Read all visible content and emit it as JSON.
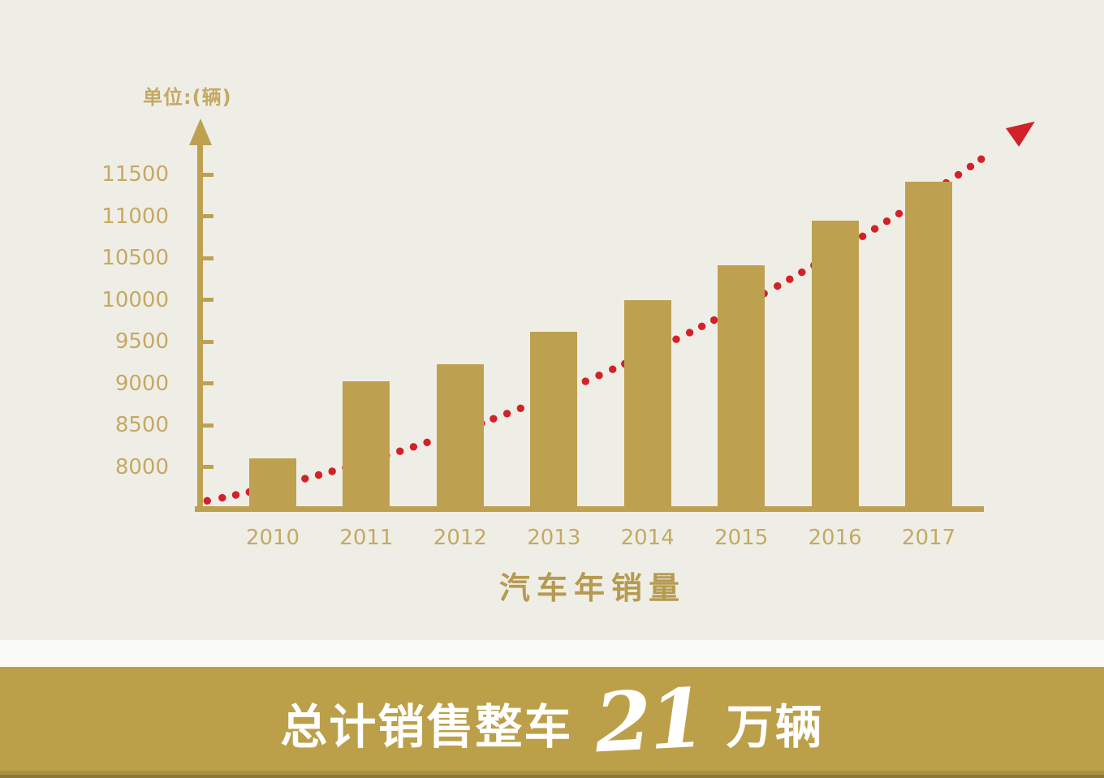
{
  "poster": {
    "background_color": "#EFEEE6",
    "divider_color": "#FBFBFA"
  },
  "chart_data": {
    "type": "bar",
    "unit_label": "单位:(辆)",
    "xlabel": "汽车年销量",
    "categories": [
      "2010",
      "2011",
      "2012",
      "2013",
      "2014",
      "2015",
      "2016",
      "2017"
    ],
    "values": [
      8100,
      9020,
      9230,
      9620,
      10000,
      10410,
      10950,
      11410
    ],
    "yticks": [
      8000,
      8500,
      9000,
      9500,
      10000,
      10500,
      11000,
      11500
    ],
    "ylim": [
      7500,
      11900
    ],
    "grid": false,
    "legend": "none",
    "bar_color": "#BEA150",
    "axis_color": "#BEA150",
    "tick_label_color": "#C5A963",
    "title_color": "#B69A50",
    "trend_line": {
      "style": "dotted",
      "color": "#D3212A",
      "direction": "rising",
      "has_arrowhead": true
    }
  },
  "banner": {
    "background_color": "#BCA049",
    "bottom_edge_colors": [
      "#AB9043",
      "#8E7736"
    ],
    "text_color": "#FFFFFF",
    "prefix": "总计销售整车",
    "number": "21",
    "suffix": "万辆"
  }
}
